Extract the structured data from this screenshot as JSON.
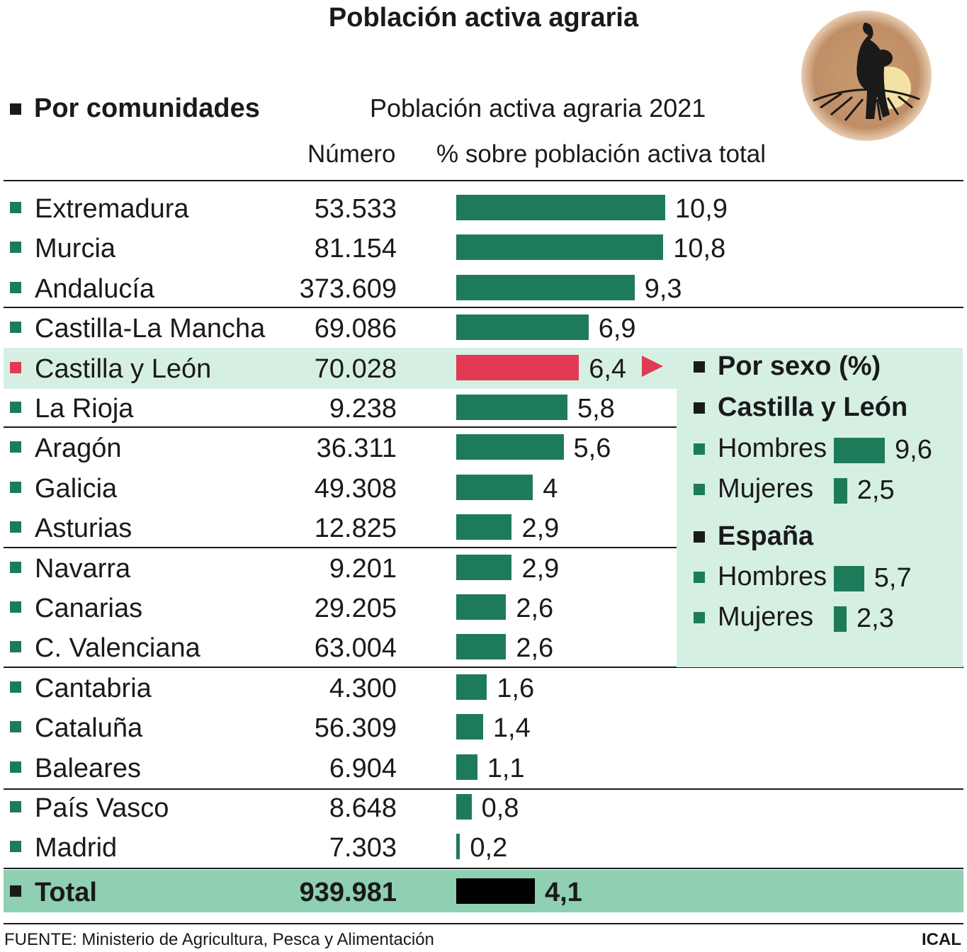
{
  "title": "Población activa agraria",
  "section_title": "Por comunidades",
  "subtitle": "Población activa agraria 2021",
  "col_numero": "Número",
  "col_pct": "% sobre población activa total",
  "colors": {
    "bar": "#1d7b5a",
    "highlight": "#e23a55",
    "total_bar": "#000000",
    "panel_bg": "#d6efe3",
    "total_bg": "#8fcfb2"
  },
  "chart_data": {
    "type": "bar",
    "orientation": "horizontal",
    "xlim": [
      0,
      10.9
    ],
    "rows": [
      {
        "name": "Extremadura",
        "numero": "53.533",
        "label": "10,9",
        "value": 10.9
      },
      {
        "name": "Murcia",
        "numero": "81.154",
        "label": "10,8",
        "value": 10.8
      },
      {
        "name": "Andalucía",
        "numero": "373.609",
        "label": "9,3",
        "value": 9.3
      },
      {
        "name": "Castilla-La Mancha",
        "numero": "69.086",
        "label": "6,9",
        "value": 6.9
      },
      {
        "name": "Castilla y León",
        "numero": "70.028",
        "label": "6,4",
        "value": 6.4,
        "highlight": true
      },
      {
        "name": "La Rioja",
        "numero": "9.238",
        "label": "5,8",
        "value": 5.8
      },
      {
        "name": "Aragón",
        "numero": "36.311",
        "label": "5,6",
        "value": 5.6
      },
      {
        "name": "Galicia",
        "numero": "49.308",
        "label": "4",
        "value": 4
      },
      {
        "name": "Asturias",
        "numero": "12.825",
        "label": "2,9",
        "value": 2.9
      },
      {
        "name": "Navarra",
        "numero": "9.201",
        "label": "2,9",
        "value": 2.9
      },
      {
        "name": "Canarias",
        "numero": "29.205",
        "label": "2,6",
        "value": 2.6
      },
      {
        "name": "C. Valenciana",
        "numero": "63.004",
        "label": "2,6",
        "value": 2.6
      },
      {
        "name": "Cantabria",
        "numero": "4.300",
        "label": "1,6",
        "value": 1.6
      },
      {
        "name": "Cataluña",
        "numero": "56.309",
        "label": "1,4",
        "value": 1.4
      },
      {
        "name": "Baleares",
        "numero": "6.904",
        "label": "1,1",
        "value": 1.1
      },
      {
        "name": "País Vasco",
        "numero": "8.648",
        "label": "0,8",
        "value": 0.8
      },
      {
        "name": "Madrid",
        "numero": "7.303",
        "label": "0,2",
        "value": 0.2
      }
    ],
    "total": {
      "name": "Total",
      "numero": "939.981",
      "label": "4,1",
      "value": 4.1
    },
    "by_sex": {
      "title": "Por sexo (%)",
      "groups": [
        {
          "name": "Castilla y León",
          "items": [
            {
              "name": "Hombres",
              "label": "9,6",
              "value": 9.6
            },
            {
              "name": "Mujeres",
              "label": "2,5",
              "value": 2.5
            }
          ]
        },
        {
          "name": "España",
          "items": [
            {
              "name": "Hombres",
              "label": "5,7",
              "value": 5.7
            },
            {
              "name": "Mujeres",
              "label": "2,3",
              "value": 2.3
            }
          ]
        }
      ]
    }
  },
  "footer": {
    "source": "FUENTE:  Ministerio de Agricultura, Pesca y Alimentación",
    "brand": "ICAL"
  }
}
